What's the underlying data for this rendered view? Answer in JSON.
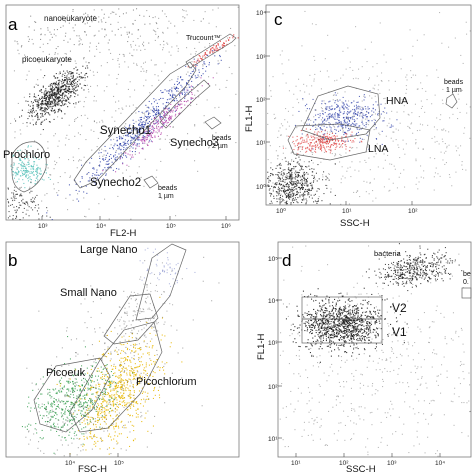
{
  "figure": {
    "panels": [
      "a",
      "b",
      "c",
      "d"
    ]
  },
  "colors": {
    "frame": "#7a7a7a",
    "black_events": "#1a1a1a",
    "cyan": "#3fb8b0",
    "blue": "#2d3fa8",
    "magenta": "#b43ca8",
    "red": "#e04040",
    "yellow": "#e7b700",
    "green": "#2e9a48"
  },
  "chart_data": [
    {
      "panel": "a",
      "type": "scatter",
      "xlabel": "FL2-H",
      "ylabel": "",
      "x_scale": "log",
      "x_ticks": [
        "10³",
        "10⁴",
        "10⁵",
        "10⁶"
      ],
      "y_ticks": [],
      "grid": false,
      "populations": [
        {
          "name": "nanoeukaryote",
          "color": "black_events"
        },
        {
          "name": "picoeukaryote",
          "color": "black_events"
        },
        {
          "name": "Prochloro",
          "color": "cyan"
        },
        {
          "name": "Synecho1",
          "color": "blue"
        },
        {
          "name": "Synecho2",
          "color": "magenta"
        },
        {
          "name": "Synecho3",
          "color": "black_events"
        },
        {
          "name": "Trucount™",
          "color": "red"
        }
      ],
      "annotations": [
        "beads\n2 µm",
        "beads\n1 µm"
      ]
    },
    {
      "panel": "b",
      "type": "scatter",
      "xlabel": "FSC-H",
      "ylabel": "",
      "x_scale": "log",
      "x_ticks": [
        "10⁴",
        "10⁵"
      ],
      "y_ticks": [],
      "grid": false,
      "populations": [
        {
          "name": "Large Nano",
          "color": "black_events"
        },
        {
          "name": "Small Nano",
          "color": "black_events"
        },
        {
          "name": "Picoeuk",
          "color": "green"
        },
        {
          "name": "Picochlorum",
          "color": "yellow"
        }
      ]
    },
    {
      "panel": "c",
      "type": "scatter",
      "xlabel": "SSC-H",
      "ylabel": "FL1-H",
      "x_scale": "log",
      "y_scale": "log",
      "x_ticks": [
        "10⁰",
        "10¹",
        "10²"
      ],
      "y_ticks": [
        "10⁰",
        "10¹",
        "10²",
        "10³",
        "10⁴"
      ],
      "grid": false,
      "populations": [
        {
          "name": "HNA",
          "color": "blue"
        },
        {
          "name": "LNA",
          "color": "red"
        }
      ],
      "annotations": [
        "beads\n1 µm"
      ]
    },
    {
      "panel": "d",
      "type": "scatter",
      "xlabel": "SSC-H",
      "ylabel": "FL1-H",
      "x_scale": "log",
      "y_scale": "log",
      "x_ticks": [
        "10¹",
        "10²",
        "10³",
        "10⁴"
      ],
      "y_ticks": [
        "10¹",
        "10²",
        "10³",
        "10⁴",
        "10⁵"
      ],
      "grid": false,
      "populations": [
        {
          "name": "bacteria",
          "color": "black_events"
        },
        {
          "name": "V2",
          "color": "black_events"
        },
        {
          "name": "V1",
          "color": "black_events"
        }
      ],
      "annotations": [
        "be\n0."
      ]
    }
  ]
}
